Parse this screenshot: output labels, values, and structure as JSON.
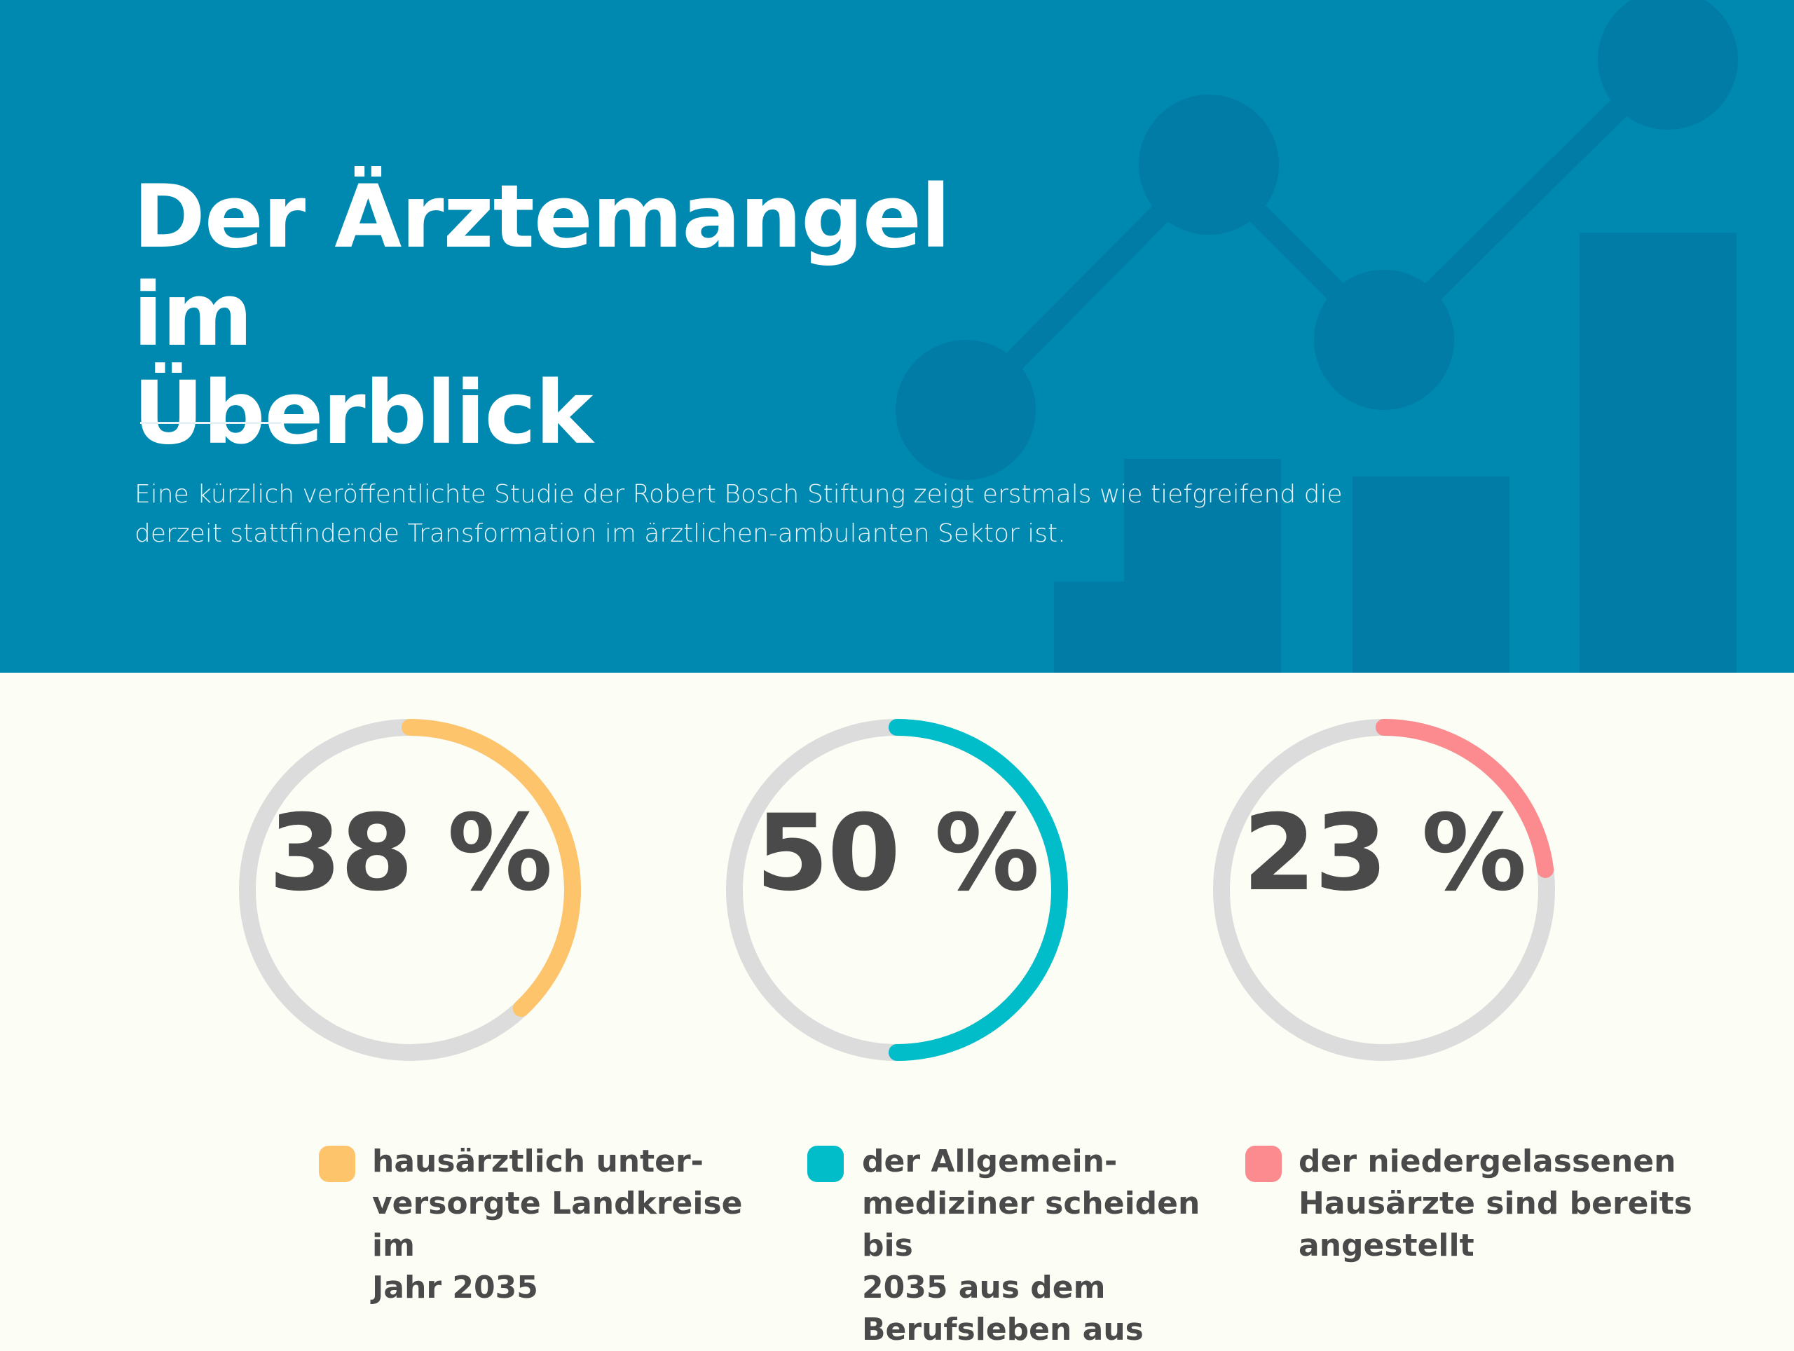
{
  "header": {
    "title": "Der Ärztemangel im\nÜberblick",
    "description": "Eine kürzlich veröffentlichte Studie der Robert Bosch Stiftung zeigt erstmals wie tiefgreifend die derzeit stattfindende Transformation im ärztlichen-ambulanten Sektor ist."
  },
  "colors": {
    "header_background": "#0089b0",
    "page_background": "#fcfdf5",
    "ring_track": "#dcdcdc",
    "text": "#4a4a4a"
  },
  "stats": [
    {
      "value_label": "38 %",
      "description": "hausärztlich unter-\nversorgte Landkreise im\nJahr 2035",
      "color": "#fec46b"
    },
    {
      "value_label": "50 %",
      "description": "der Allgemein-\nmediziner scheiden bis\n2035 aus dem\nBerufsleben aus",
      "color": "#00bdc9"
    },
    {
      "value_label": "23 %",
      "description": "der niedergelassenen\nHausärzte sind bereits\nangestellt",
      "color": "#fb8b8e"
    }
  ],
  "chart_data": {
    "type": "pie",
    "variant": "progress-rings",
    "unit": "%",
    "categories": [
      "hausärztlich unter-versorgte Landkreise im Jahr 2035",
      "der Allgemein-mediziner scheiden bis 2035 aus dem Berufsleben aus",
      "der niedergelassenen Hausärzte sind bereits angestellt"
    ],
    "values": [
      38,
      50,
      23
    ],
    "max": 100,
    "legend_placement": "below"
  }
}
